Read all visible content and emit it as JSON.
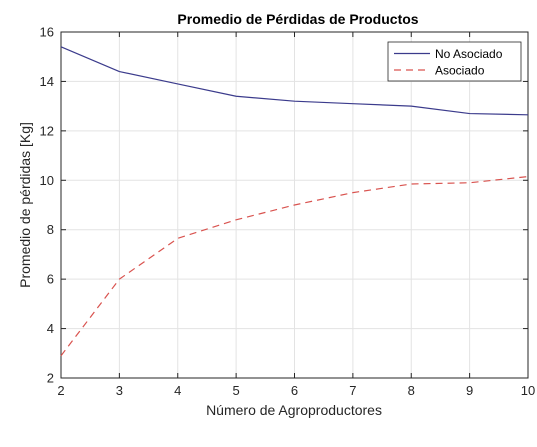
{
  "chart_data": {
    "type": "line",
    "title": "Promedio de Pérdidas de Productos",
    "xlabel": "Número de Agroproductores",
    "ylabel": "Promedio de pérdidas [Kg]",
    "x": [
      2,
      3,
      4,
      5,
      6,
      7,
      8,
      9,
      10
    ],
    "xlim": [
      2,
      10
    ],
    "ylim": [
      2,
      16
    ],
    "xticks": [
      2,
      3,
      4,
      5,
      6,
      7,
      8,
      9,
      10
    ],
    "yticks": [
      2,
      4,
      6,
      8,
      10,
      12,
      14,
      16
    ],
    "grid": true,
    "legend_position": "top-right",
    "series": [
      {
        "name": "No Asociado",
        "values": [
          15.4,
          14.4,
          13.9,
          13.4,
          13.2,
          13.1,
          13.0,
          12.7,
          12.65
        ],
        "color": "#3b3b8c",
        "style": "solid"
      },
      {
        "name": "Asociado",
        "values": [
          2.9,
          6.0,
          7.65,
          8.4,
          9.0,
          9.5,
          9.85,
          9.9,
          10.15
        ],
        "color": "#d9534f",
        "style": "dashed"
      }
    ]
  }
}
